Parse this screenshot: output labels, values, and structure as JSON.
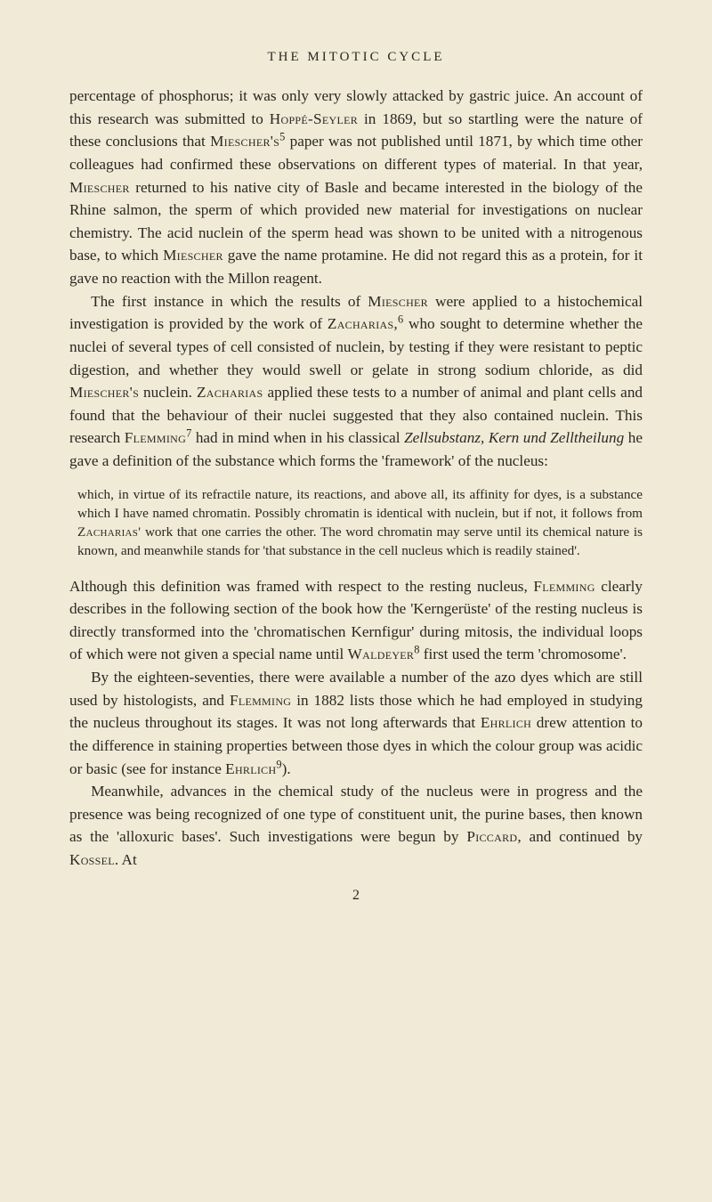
{
  "header": "THE MITOTIC CYCLE",
  "paragraphs": {
    "p1_a": "percentage of phosphorus; it was only very slowly attacked by gastric juice. An account of this research was submitted to ",
    "p1_sc1": "Hoppé-Seyler",
    "p1_b": " in 1869, but so startling were the nature of these conclusions that ",
    "p1_sc2": "Miescher's",
    "p1_sup1": "5",
    "p1_c": " paper was not published until 1871, by which time other colleagues had confirmed these observations on different types of material. In that year, ",
    "p1_sc3": "Miescher",
    "p1_d": " returned to his native city of Basle and became interested in the biology of the Rhine salmon, the sperm of which provided new material for investigations on nuclear chemistry. The acid nuclein of the sperm head was shown to be united with a nitrogenous base, to which ",
    "p1_sc4": "Miescher",
    "p1_e": " gave the name protamine. He did not regard this as a protein, for it gave no reaction with the Millon reagent.",
    "p2_a": "The first instance in which the results of ",
    "p2_sc1": "Miescher",
    "p2_b": " were applied to a histochemical investigation is provided by the work of ",
    "p2_sc2": "Zacharias,",
    "p2_sup1": "6",
    "p2_c": " who sought to determine whether the nuclei of several types of cell consisted of nuclein, by testing if they were resistant to peptic digestion, and whether they would swell or gelate in strong sodium chloride, as did ",
    "p2_sc3": "Miescher's",
    "p2_d": " nuclein. ",
    "p2_sc4": "Zacharias",
    "p2_e": " applied these tests to a number of animal and plant cells and found that the behaviour of their nuclei suggested that they also contained nuclein. This research ",
    "p2_sc5": "Flemming",
    "p2_sup2": "7",
    "p2_f": " had in mind when in his classical ",
    "p2_it1": "Zellsubstanz, Kern und Zelltheilung",
    "p2_g": " he gave a definition of the substance which forms the 'framework' of the nucleus:",
    "quote_a": "which, in virtue of its refractile nature, its reactions, and above all, its affinity for dyes, is a substance which I have named chromatin. Possibly chromatin is identical with nuclein, but if not, it follows from ",
    "quote_sc1": "Zacharias'",
    "quote_b": " work that one carries the other. The word chromatin may serve until its chemical nature is known, and meanwhile stands for 'that substance in the cell nucleus which is readily stained'.",
    "p3_a": "Although this definition was framed with respect to the resting nucleus, ",
    "p3_sc1": "Flemming",
    "p3_b": " clearly describes in the following section of the book how the 'Kerngerüste' of the resting nucleus is directly transformed into the 'chromatischen Kernfigur' during mitosis, the individual loops of which were not given a special name until ",
    "p3_sc2": "Waldeyer",
    "p3_sup1": "8",
    "p3_c": " first used the term 'chromosome'.",
    "p4_a": "By the eighteen-seventies, there were available a number of the azo dyes which are still used by histologists, and ",
    "p4_sc1": "Flemming",
    "p4_b": " in 1882 lists those which he had employed in studying the nucleus throughout its stages. It was not long afterwards that ",
    "p4_sc2": "Ehrlich",
    "p4_c": " drew attention to the difference in staining properties between those dyes in which the colour group was acidic or basic (see for instance ",
    "p4_sc3": "Ehrlich",
    "p4_sup1": "9",
    "p4_d": ").",
    "p5_a": "Meanwhile, advances in the chemical study of the nucleus were in progress and the presence was being recognized of one type of constituent unit, the purine bases, then known as the 'alloxuric bases'. Such investigations were begun by ",
    "p5_sc1": "Piccard",
    "p5_b": ", and continued by ",
    "p5_sc2": "Kossel",
    "p5_c": ". At"
  },
  "pageNumber": "2"
}
